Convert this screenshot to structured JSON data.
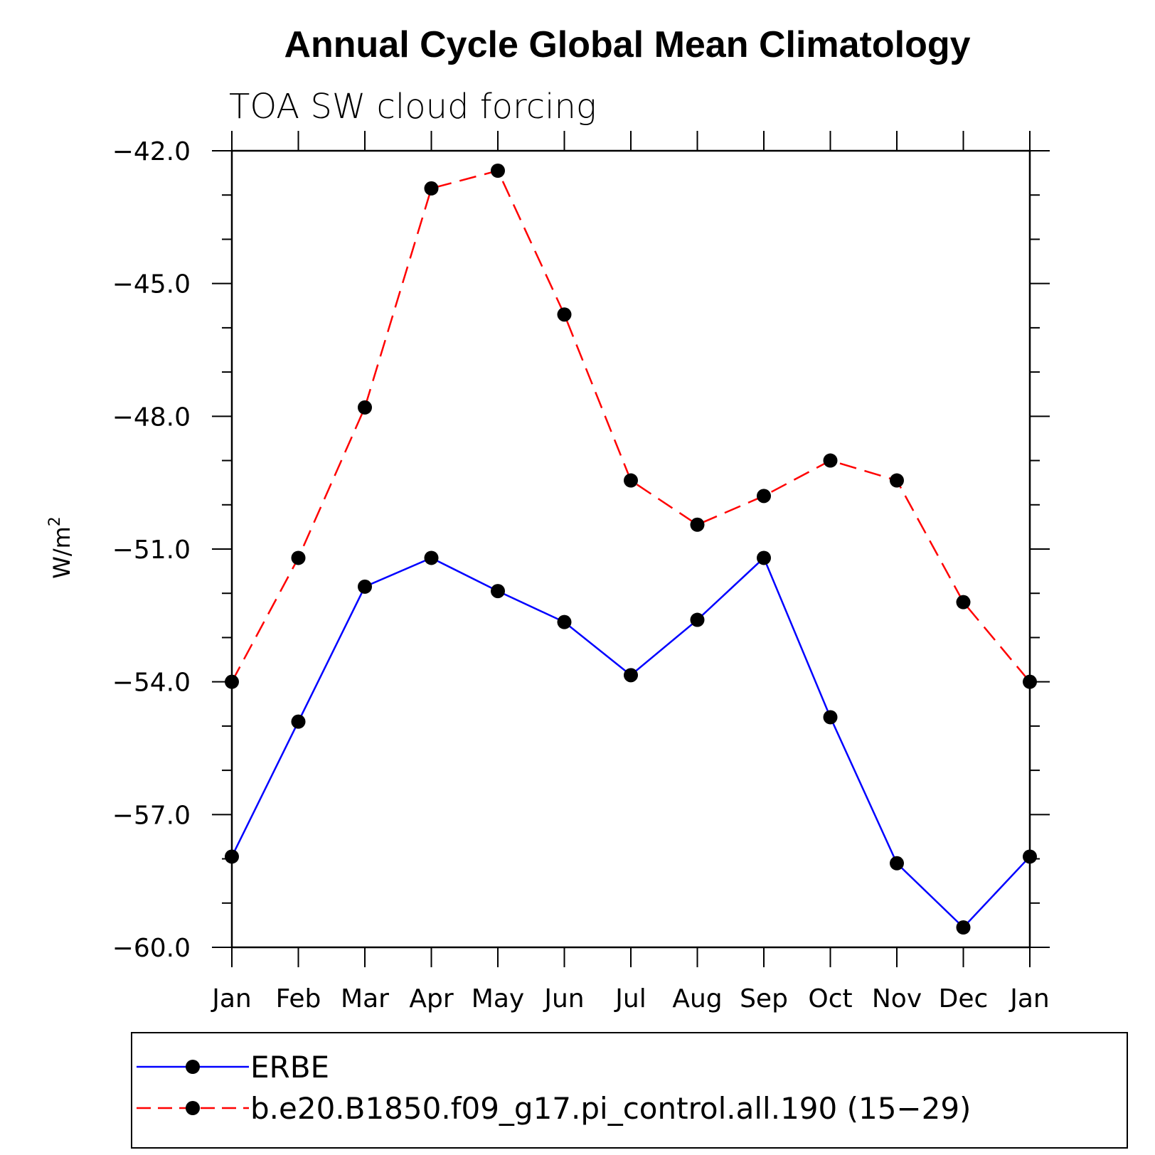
{
  "chart_data": {
    "type": "line",
    "title": "Annual Cycle Global Mean Climatology",
    "subtitle": "TOA SW cloud forcing",
    "ylabel": "W/m",
    "ylabel_superscript": "2",
    "categories": [
      "Jan",
      "Feb",
      "Mar",
      "Apr",
      "May",
      "Jun",
      "Jul",
      "Aug",
      "Sep",
      "Oct",
      "Nov",
      "Dec",
      "Jan"
    ],
    "ylim": [
      -60.0,
      -42.0
    ],
    "yticks": [
      "-42.0",
      "-45.0",
      "-48.0",
      "-51.0",
      "-54.0",
      "-57.0",
      "-60.0"
    ],
    "series": [
      {
        "name": "ERBE",
        "color": "#0000ff",
        "dash": "solid",
        "values": [
          -57.95,
          -54.9,
          -51.85,
          -51.2,
          -51.95,
          -52.65,
          -53.85,
          -52.6,
          -51.2,
          -54.8,
          -58.1,
          -59.55,
          -57.95
        ]
      },
      {
        "name": "b.e20.B1850.f09_g17.pi_control.all.190 (15−29)",
        "color": "#ff0000",
        "dash": "dashed",
        "values": [
          -54.0,
          -51.2,
          -47.8,
          -42.85,
          -42.45,
          -45.7,
          -49.45,
          -50.45,
          -49.8,
          -49.0,
          -49.45,
          -52.2,
          -54.0
        ]
      }
    ],
    "legend_position": "bottom",
    "marker": "filled-circle"
  }
}
